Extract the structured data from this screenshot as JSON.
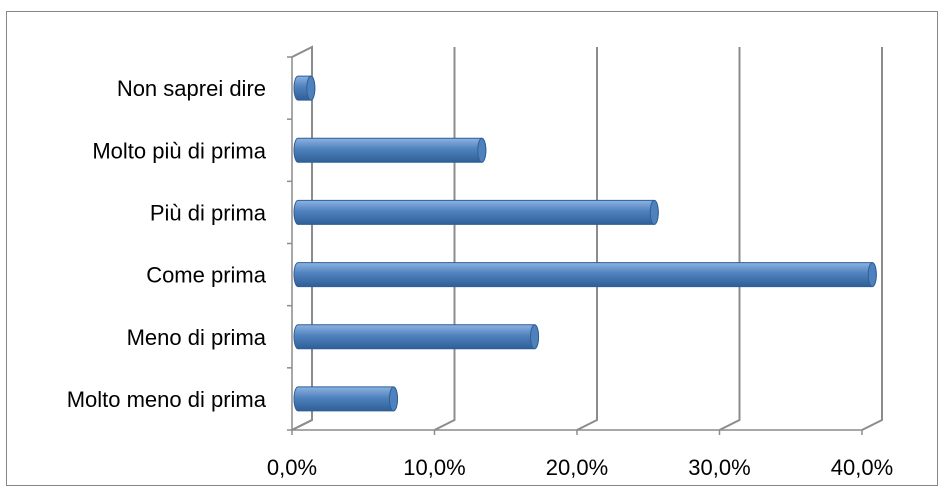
{
  "chart_data": {
    "type": "bar",
    "orientation": "horizontal",
    "style": "3d-cylinder",
    "categories": [
      "Molto meno di prima",
      "Meno di prima",
      "Come prima",
      "Più di prima",
      "Molto più di prima",
      "Non saprei dire"
    ],
    "values": [
      6.7,
      16.6,
      40.3,
      25.0,
      12.9,
      0.9
    ],
    "xticks": [
      "0,0%",
      "10,0%",
      "20,0%",
      "30,0%",
      "40,0%"
    ],
    "xlim": [
      0,
      40
    ],
    "title": "",
    "xlabel": "",
    "ylabel": "",
    "grid": true,
    "legend": "none",
    "colors": {
      "bar": "#4f81bd",
      "bar_dark": "#2f5f97",
      "bar_light": "#8db3e2",
      "grid": "#8c8c8c",
      "frame": "#868686"
    }
  }
}
